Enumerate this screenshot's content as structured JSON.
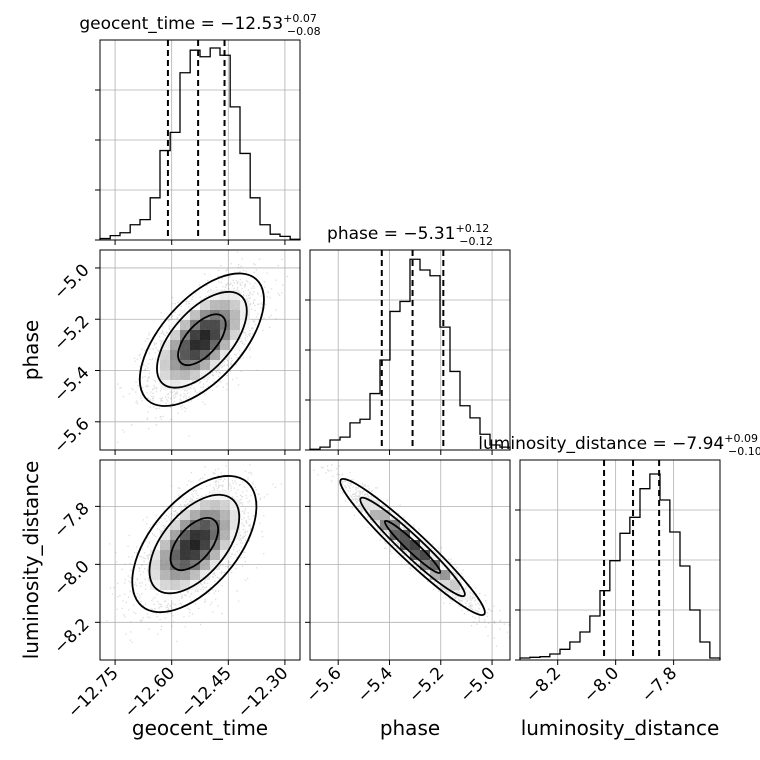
{
  "chart_data": {
    "type": "corner",
    "parameters": [
      "geocent_time",
      "phase",
      "luminosity_distance"
    ],
    "grid": true,
    "marginals": [
      {
        "name": "geocent_time",
        "title": {
          "prefix": "geocent_time = ",
          "median": "−12.53",
          "plus": "+0.07",
          "minus": "−0.08"
        },
        "xlim": [
          -12.79,
          -12.26
        ],
        "median": -12.53,
        "lower": -12.61,
        "upper": -12.46,
        "bins_edges": [
          -12.79,
          -12.763,
          -12.737,
          -12.71,
          -12.684,
          -12.657,
          -12.631,
          -12.604,
          -12.578,
          -12.551,
          -12.525,
          -12.498,
          -12.472,
          -12.445,
          -12.419,
          -12.392,
          -12.366,
          -12.339,
          -12.313,
          -12.286,
          -12.26
        ],
        "counts": [
          2,
          6,
          10,
          21,
          28,
          58,
          123,
          148,
          230,
          261,
          252,
          264,
          254,
          183,
          119,
          58,
          21,
          8,
          5,
          1
        ],
        "ymax": 275
      },
      {
        "name": "phase",
        "title": {
          "prefix": "phase = ",
          "median": "−5.31",
          "plus": "+0.12",
          "minus": "−0.12"
        },
        "xlim": [
          -5.71,
          -4.93
        ],
        "median": -5.31,
        "lower": -5.43,
        "upper": -5.19,
        "bins_edges": [
          -5.71,
          -5.671,
          -5.632,
          -5.593,
          -5.554,
          -5.515,
          -5.476,
          -5.437,
          -5.398,
          -5.359,
          -5.32,
          -5.281,
          -5.242,
          -5.203,
          -5.164,
          -5.125,
          -5.086,
          -5.047,
          -5.008,
          -4.969,
          -4.93
        ],
        "counts": [
          1,
          4,
          14,
          18,
          38,
          43,
          79,
          126,
          194,
          208,
          267,
          252,
          244,
          172,
          110,
          62,
          45,
          22,
          7,
          4
        ],
        "ymax": 280
      },
      {
        "name": "luminosity_distance",
        "title": {
          "prefix": "luminosity_distance = ",
          "median": "−7.94",
          "plus": "+0.09",
          "minus": "−0.10"
        },
        "xlim": [
          -8.33,
          -7.64
        ],
        "median": -7.94,
        "lower": -8.04,
        "upper": -7.85,
        "bins_edges": [
          -8.33,
          -8.296,
          -8.261,
          -8.227,
          -8.192,
          -8.158,
          -8.123,
          -8.089,
          -8.054,
          -8.02,
          -7.985,
          -7.951,
          -7.916,
          -7.882,
          -7.847,
          -7.813,
          -7.778,
          -7.744,
          -7.709,
          -7.675,
          -7.64
        ],
        "counts": [
          3,
          4,
          5,
          9,
          16,
          27,
          42,
          66,
          104,
          149,
          190,
          214,
          257,
          279,
          240,
          192,
          141,
          75,
          27,
          3
        ],
        "ymax": 300
      }
    ],
    "joint": [
      {
        "x_param": "geocent_time",
        "y_param": "phase",
        "ylim": [
          -5.71,
          -4.93
        ],
        "center": [
          -12.52,
          -5.28
        ],
        "sd": [
          0.07,
          0.11
        ],
        "rho": 0.6,
        "n_points": 2600
      },
      {
        "x_param": "geocent_time",
        "y_param": "luminosity_distance",
        "ylim": [
          -8.33,
          -7.64
        ],
        "center": [
          -12.54,
          -7.93
        ],
        "sd": [
          0.07,
          0.1
        ],
        "rho": 0.55,
        "n_points": 2600
      },
      {
        "x_param": "phase",
        "y_param": "luminosity_distance",
        "center": [
          -5.31,
          -7.94
        ],
        "sd": [
          0.12,
          0.1
        ],
        "rho": -0.96,
        "n_points": 2600
      }
    ],
    "ticks": {
      "geocent_time": {
        "values": [
          -12.75,
          -12.6,
          -12.45,
          -12.3
        ],
        "labels": [
          "−12.75",
          "−12.60",
          "−12.45",
          "−12.30"
        ]
      },
      "phase": {
        "values": [
          -5.6,
          -5.4,
          -5.2,
          -5.0
        ],
        "labels": [
          "−5.6",
          "−5.4",
          "−5.2",
          "−5.0"
        ]
      },
      "luminosity_distance": {
        "values": [
          -8.2,
          -8.0,
          -7.8
        ],
        "labels": [
          "−8.2",
          "−8.0",
          "−7.8"
        ]
      }
    },
    "xlabels": [
      "geocent_time",
      "phase",
      "luminosity_distance"
    ],
    "ylabels": [
      "phase",
      "luminosity_distance"
    ],
    "colors": {
      "line": "#000000",
      "grid": "#b0b0b0",
      "scatter": "#9a9a9a"
    }
  }
}
